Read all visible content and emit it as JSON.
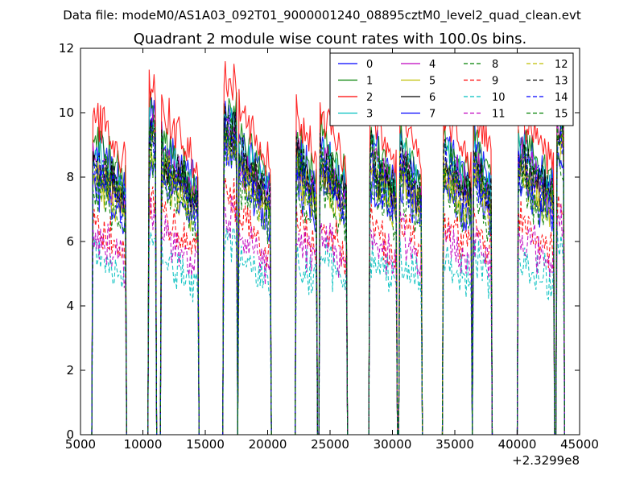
{
  "figure": {
    "suptitle": "Data file: modeM0/AS1A03_092T01_9000001240_08895cztM0_level2_quad_clean.evt",
    "title": "Quadrant 2 module wise count rates with 100.0s bins.",
    "x_offset_label": "+2.3299e8"
  },
  "chart_data": {
    "type": "line",
    "title": "Quadrant 2 module wise count rates with 100.0s bins.",
    "xlabel": "",
    "ylabel": "",
    "xlim": [
      5000,
      45000
    ],
    "ylim": [
      0,
      12
    ],
    "x_ticks": [
      5000,
      10000,
      15000,
      20000,
      25000,
      30000,
      35000,
      40000,
      45000
    ],
    "x_tick_labels": [
      "5000",
      "10000",
      "15000",
      "20000",
      "25000",
      "30000",
      "35000",
      "40000",
      "45000"
    ],
    "y_ticks": [
      0,
      2,
      4,
      6,
      8,
      10,
      12
    ],
    "y_tick_labels": [
      "0",
      "2",
      "4",
      "6",
      "8",
      "10",
      "12"
    ],
    "grid": false,
    "legend_position": "top-right",
    "legend_columns": 4,
    "bin_seconds": 100,
    "orbit_segments": [
      [
        6000,
        8600
      ],
      [
        10500,
        11000
      ],
      [
        11500,
        14400
      ],
      [
        16500,
        17500
      ],
      [
        17700,
        20200
      ],
      [
        22300,
        23900
      ],
      [
        24200,
        26300
      ],
      [
        28200,
        30300
      ],
      [
        30600,
        32300
      ],
      [
        34100,
        36300
      ],
      [
        36500,
        37900
      ],
      [
        40100,
        42900
      ],
      [
        43200,
        43700
      ]
    ],
    "series": [
      {
        "name": "0",
        "color": "#0000ff",
        "dash": "solid",
        "mean_rate": 8.1
      },
      {
        "name": "1",
        "color": "#008000",
        "dash": "solid",
        "mean_rate": 8.3
      },
      {
        "name": "2",
        "color": "#ff0000",
        "dash": "solid",
        "mean_rate": 9.0
      },
      {
        "name": "3",
        "color": "#00bfbf",
        "dash": "solid",
        "mean_rate": 7.9
      },
      {
        "name": "4",
        "color": "#bf00bf",
        "dash": "solid",
        "mean_rate": 7.7
      },
      {
        "name": "5",
        "color": "#bfbf00",
        "dash": "solid",
        "mean_rate": 7.3
      },
      {
        "name": "6",
        "color": "#000000",
        "dash": "solid",
        "mean_rate": 7.6
      },
      {
        "name": "7",
        "color": "#0000ff",
        "dash": "solid",
        "mean_rate": 7.1
      },
      {
        "name": "8",
        "color": "#008000",
        "dash": "dashed",
        "mean_rate": 6.9
      },
      {
        "name": "9",
        "color": "#ff0000",
        "dash": "dashed",
        "mean_rate": 6.0
      },
      {
        "name": "10",
        "color": "#00bfbf",
        "dash": "dashed",
        "mean_rate": 5.0
      },
      {
        "name": "11",
        "color": "#bf00bf",
        "dash": "dashed",
        "mean_rate": 5.6
      },
      {
        "name": "12",
        "color": "#bfbf00",
        "dash": "dashed",
        "mean_rate": 7.4
      },
      {
        "name": "13",
        "color": "#000000",
        "dash": "dashed",
        "mean_rate": 7.8
      },
      {
        "name": "14",
        "color": "#0000ff",
        "dash": "dashed",
        "mean_rate": 7.5
      },
      {
        "name": "15",
        "color": "#008000",
        "dash": "dashed",
        "mean_rate": 7.7
      }
    ]
  }
}
